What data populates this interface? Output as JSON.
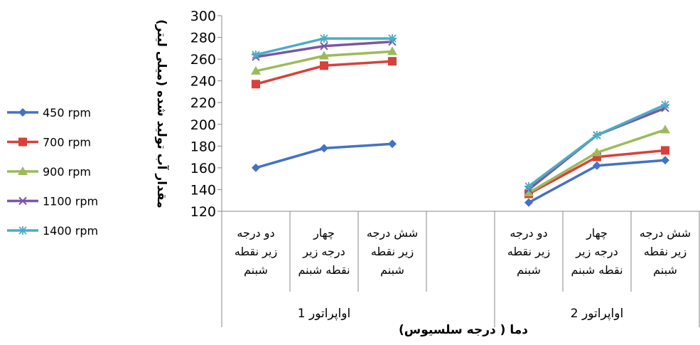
{
  "chart_data": {
    "type": "line",
    "title": "",
    "xlabel": "دما ( درجه سلسیوس)",
    "ylabel": "مقدار آب تولید شده (میلی لیتر)",
    "ylim": [
      120,
      300
    ],
    "yticks": [
      "120",
      "140",
      "160",
      "180",
      "200",
      "220",
      "240",
      "260",
      "280",
      "300"
    ],
    "legend_position": "left",
    "grid": false,
    "groups": [
      {
        "label": "اواپراتور 1",
        "categories": [
          [
            "دو درجه",
            "زیر نقطه",
            "شبنم"
          ],
          [
            "چهار",
            "درجه زیر",
            "نقطه شبنم"
          ],
          [
            "شش درجه",
            "زیر نقطه",
            "شبنم"
          ]
        ]
      },
      {
        "label": "اواپراتور 2",
        "categories": [
          [
            "دو درجه",
            "زیر نقطه",
            "شبنم"
          ],
          [
            "چهار",
            "درجه زیر",
            "نقطه شبنم"
          ],
          [
            "شش درجه",
            "زیر نقطه",
            "شبنم"
          ]
        ]
      }
    ],
    "series": [
      {
        "name": "450 rpm",
        "color": "#4472C4",
        "marker": "diamond",
        "values": [
          [
            160,
            178,
            182
          ],
          [
            128,
            162,
            167
          ]
        ]
      },
      {
        "name": "700 rpm",
        "color": "#D9403B",
        "marker": "square",
        "values": [
          [
            237,
            254,
            258
          ],
          [
            136,
            170,
            176
          ]
        ]
      },
      {
        "name": "900 rpm",
        "color": "#9BBB59",
        "marker": "triangle",
        "values": [
          [
            249,
            263,
            267
          ],
          [
            137,
            174,
            195
          ]
        ]
      },
      {
        "name": "1100 rpm",
        "color": "#7B57A5",
        "marker": "x",
        "values": [
          [
            262,
            272,
            276
          ],
          [
            140,
            190,
            215
          ]
        ]
      },
      {
        "name": "1400 rpm",
        "color": "#4BACC6",
        "marker": "star",
        "values": [
          [
            264,
            279,
            279
          ],
          [
            143,
            190,
            218
          ]
        ]
      }
    ]
  }
}
